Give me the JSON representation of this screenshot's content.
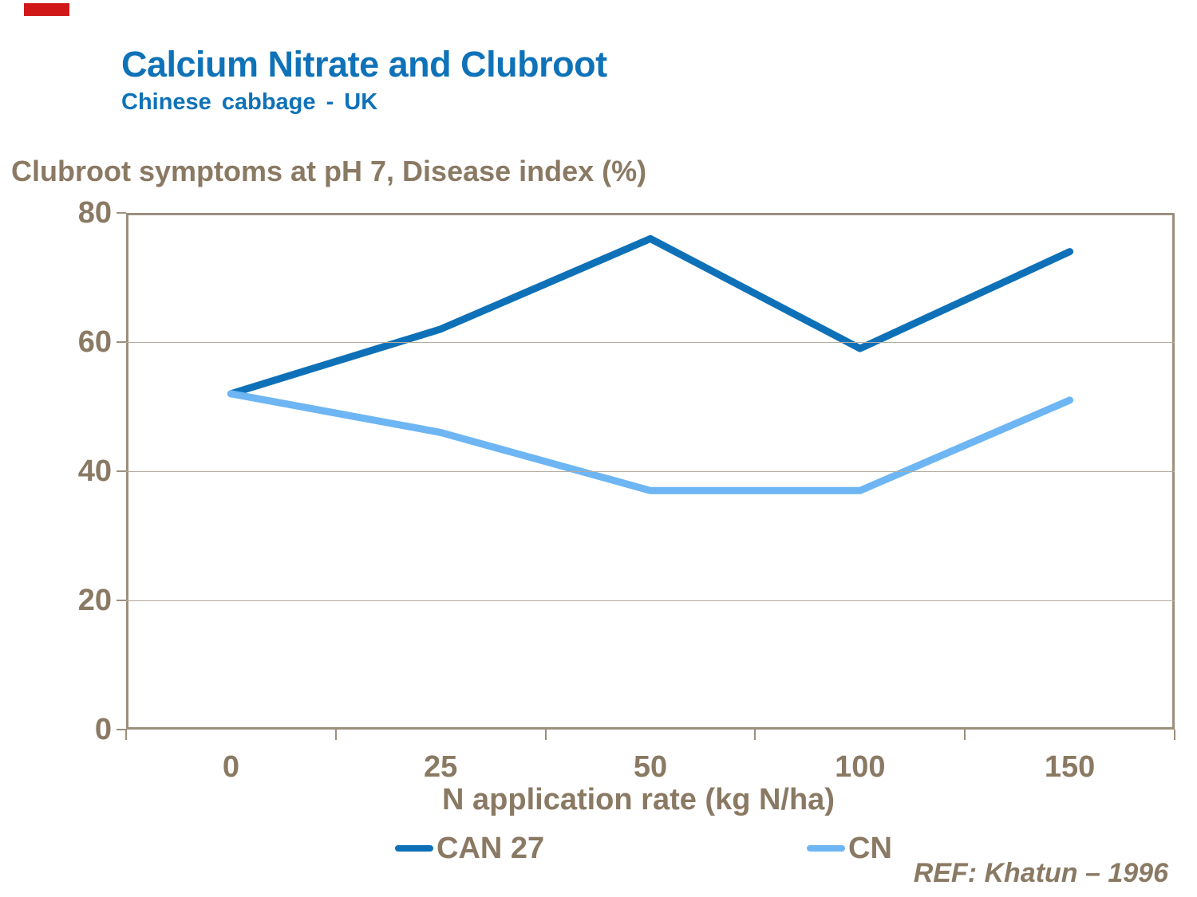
{
  "page": {
    "title": "Calcium Nitrate and Clubroot",
    "subtitle": "Chinese cabbage - UK",
    "reference": "REF: Khatun – 1996"
  },
  "chart_data": {
    "type": "line",
    "title": "Clubroot symptoms at pH 7, Disease index (%)",
    "xlabel": "N application rate (kg N/ha)",
    "ylabel": "",
    "categories": [
      "0",
      "25",
      "50",
      "100",
      "150"
    ],
    "series": [
      {
        "name": "CAN 27",
        "color": "#0e71b8",
        "values": [
          52,
          62,
          76,
          59,
          74
        ]
      },
      {
        "name": "CN",
        "color": "#6db6f3",
        "values": [
          52,
          46,
          37,
          37,
          51
        ]
      }
    ],
    "y_ticks": [
      0,
      20,
      40,
      60,
      80
    ],
    "ylim": [
      0,
      80
    ],
    "grid": true,
    "legend_position": "bottom"
  },
  "colors": {
    "title_blue": "#0f72b8",
    "text_brown": "#8a7963",
    "axis_border": "#9c8f7e",
    "gridline": "#b5ab9e",
    "accent_red": "#d01818",
    "series_can27": "#0e71b8",
    "series_cn": "#6db6f3"
  }
}
